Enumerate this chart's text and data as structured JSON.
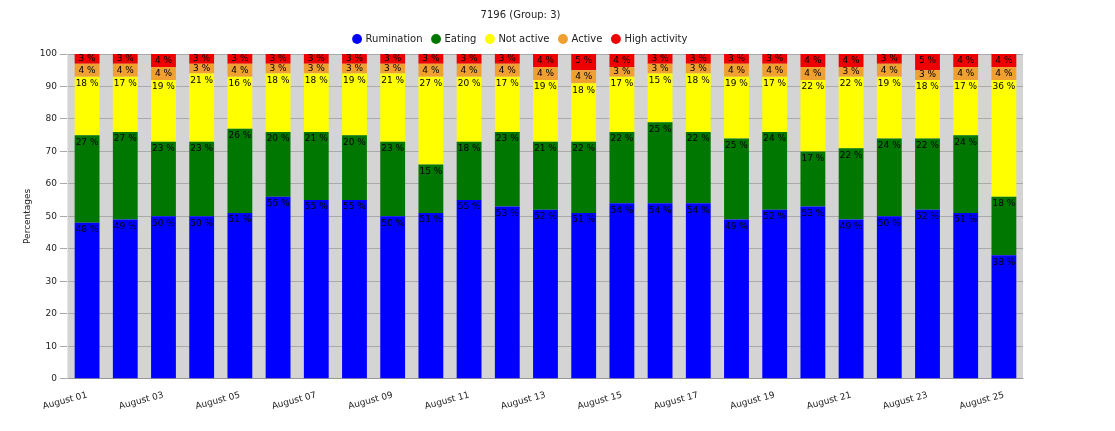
{
  "chart_data": {
    "type": "bar",
    "stacked": true,
    "ylabel": "Percentages",
    "legend_title": "7196 (Group: 3)",
    "legend": "top",
    "categories": [
      "August 01",
      null,
      "August 03",
      null,
      "August 05",
      null,
      "August 07",
      null,
      "August 09",
      null,
      "August 11",
      null,
      "August 13",
      null,
      "August 15",
      null,
      "August 17",
      null,
      "August 19",
      null,
      "August 21",
      null,
      "August 23",
      null,
      "August 25"
    ],
    "series": [
      {
        "name": "Rumination",
        "color": "#0000ff",
        "values": [
          48,
          49,
          50,
          50,
          51,
          56,
          55,
          55,
          50,
          51,
          55,
          53,
          52,
          51,
          54,
          54,
          54,
          49,
          52,
          53,
          49,
          50,
          52,
          51,
          38
        ],
        "value_labels": [
          "48 %",
          "49 %",
          "50 %",
          "50 %",
          "51 %",
          "56 %",
          "55 %",
          "55 %",
          "50 %",
          "51 %",
          "55 %",
          "53 %",
          "52 %",
          "51 %",
          "54 %",
          "54 %",
          "54 %",
          "49 %",
          "52 %",
          "53 %",
          "49 %",
          "50 %",
          "52 %",
          "51 %",
          "38 %"
        ]
      },
      {
        "name": "Eating",
        "color": "#007700",
        "values": [
          27,
          27,
          23,
          23,
          26,
          20,
          21,
          20,
          23,
          15,
          18,
          23,
          21,
          22,
          22,
          25,
          22,
          25,
          24,
          17,
          22,
          24,
          22,
          24,
          18
        ],
        "value_labels": [
          "27 %",
          "27 %",
          "23 %",
          "23 %",
          "26 %",
          "20 %",
          "21 %",
          "20 %",
          "23 %",
          "15 %",
          "18 %",
          "23 %",
          "21 %",
          "22 %",
          "22 %",
          "25 %",
          "22 %",
          "25 %",
          "24 %",
          "17 %",
          "22 %",
          "24 %",
          "22 %",
          "24 %",
          "18 %"
        ]
      },
      {
        "name": "Not active",
        "color": "#ffff00",
        "values": [
          18,
          17,
          19,
          21,
          16,
          18,
          18,
          19,
          21,
          27,
          20,
          17,
          19,
          18,
          17,
          15,
          18,
          19,
          17,
          22,
          22,
          19,
          18,
          17,
          36
        ],
        "value_labels": [
          "18 %",
          "17 %",
          "19 %",
          "21 %",
          "16 %",
          "18 %",
          "18 %",
          "19 %",
          "21 %",
          "27 %",
          "20 %",
          "17 %",
          "19 %",
          "18 %",
          "17 %",
          "15 %",
          "18 %",
          "19 %",
          "17 %",
          "22 %",
          "22 %",
          "19 %",
          "18 %",
          "17 %",
          "36 %"
        ]
      },
      {
        "name": "Active",
        "color": "#f0a030",
        "values": [
          4,
          4,
          4,
          3,
          4,
          3,
          3,
          3,
          3,
          4,
          4,
          4,
          4,
          4,
          3,
          3,
          3,
          4,
          4,
          4,
          3,
          4,
          3,
          4,
          4
        ],
        "value_labels": [
          "4 %",
          "4 %",
          "4 %",
          "3 %",
          "4 %",
          "3 %",
          "3 %",
          "3 %",
          "3 %",
          "4 %",
          "4 %",
          "4 %",
          "4 %",
          "4 %",
          "3 %",
          "3 %",
          "3 %",
          "4 %",
          "4 %",
          "4 %",
          "3 %",
          "4 %",
          "3 %",
          "4 %",
          "4 %"
        ]
      },
      {
        "name": "High activity",
        "color": "#ee0000",
        "values": [
          3,
          3,
          4,
          3,
          3,
          3,
          3,
          3,
          3,
          3,
          3,
          3,
          4,
          5,
          4,
          3,
          3,
          3,
          3,
          4,
          4,
          3,
          5,
          4,
          4
        ],
        "value_labels": [
          "3 %",
          "3 %",
          "4 %",
          "3 %",
          "3 %",
          "3 %",
          "3 %",
          "3 %",
          "3 %",
          "3 %",
          "3 %",
          "3 %",
          "4 %",
          "5 %",
          "4 %",
          "3 %",
          "3 %",
          "3 %",
          "3 %",
          "4 %",
          "4 %",
          "3 %",
          "5 %",
          "4 %",
          "4 %"
        ]
      }
    ],
    "ylim": [
      0,
      100
    ],
    "yticks": [
      0,
      10,
      20,
      30,
      40,
      50,
      60,
      70,
      80,
      90,
      100
    ],
    "grid": "y"
  }
}
